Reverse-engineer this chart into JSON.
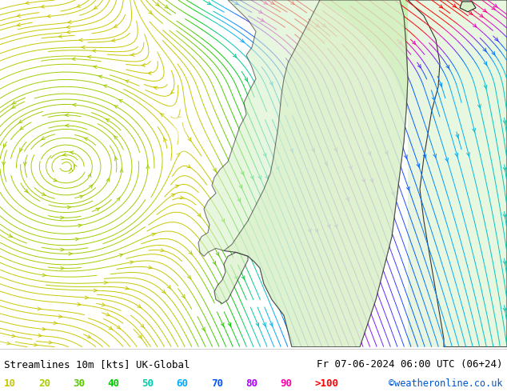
{
  "title_left": "Streamlines 10m [kts] UK-Global",
  "title_right": "Fr 07-06-2024 06:00 UTC (06+24)",
  "credit": "©weatheronline.co.uk",
  "legend_values": [
    "10",
    "20",
    "30",
    "40",
    "50",
    "60",
    "70",
    "80",
    "90",
    ">100"
  ],
  "legend_colors": [
    "#c8c800",
    "#aacc00",
    "#55cc00",
    "#00cc00",
    "#00ccaa",
    "#00aaff",
    "#0055ff",
    "#aa00ff",
    "#ff00aa",
    "#ff0000"
  ],
  "title_fontsize": 9.0,
  "legend_fontsize": 9.0,
  "credit_color": "#0055cc",
  "fig_width": 6.34,
  "fig_height": 4.9,
  "map_bg": "#f0f0f0",
  "sea_color": "#f0f0f0",
  "land_color": "#d8f0c8",
  "top_right_color": "#e8f8e8",
  "border_color": "#222222",
  "bottom_legend_bg": "#ffffff"
}
